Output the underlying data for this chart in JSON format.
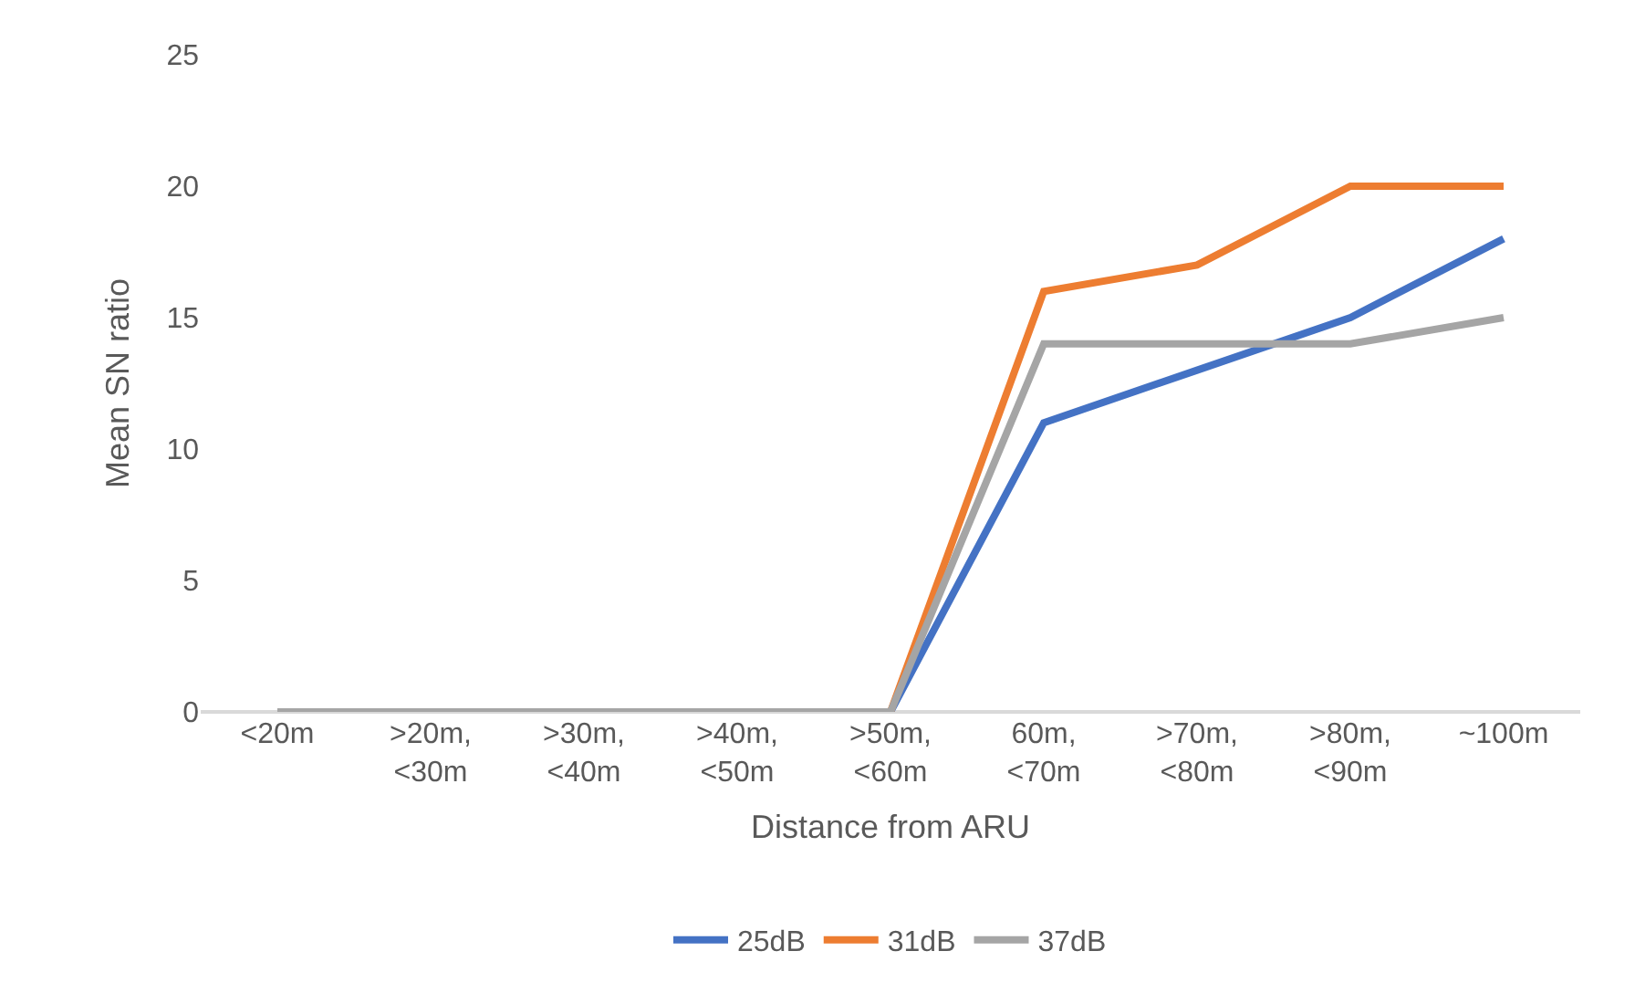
{
  "chart_data": {
    "type": "line",
    "xlabel": "Distance from ARU",
    "ylabel": "Mean SN ratio",
    "categories": [
      "<20m",
      ">20m,\n<30m",
      ">30m,\n<40m",
      ">40m,\n<50m",
      ">50m,\n<60m",
      "60m,\n<70m",
      ">70m,\n<80m",
      ">80m,\n<90m",
      "~100m"
    ],
    "series": [
      {
        "name": "25dB",
        "color": "#4472c4",
        "values": [
          null,
          null,
          null,
          0,
          0,
          11,
          13,
          15,
          18
        ]
      },
      {
        "name": "31dB",
        "color": "#ed7d31",
        "values": [
          null,
          null,
          null,
          0,
          0,
          16,
          17,
          20,
          20
        ]
      },
      {
        "name": "37dB",
        "color": "#a5a5a5",
        "values": [
          0,
          0,
          0,
          0,
          0,
          14,
          14,
          14,
          15
        ]
      }
    ],
    "ylim": [
      0,
      25
    ],
    "yticks": [
      0,
      5,
      10,
      15,
      20,
      25
    ],
    "grid": false,
    "legend": "bottom",
    "marker": "none",
    "line_style": "solid"
  }
}
